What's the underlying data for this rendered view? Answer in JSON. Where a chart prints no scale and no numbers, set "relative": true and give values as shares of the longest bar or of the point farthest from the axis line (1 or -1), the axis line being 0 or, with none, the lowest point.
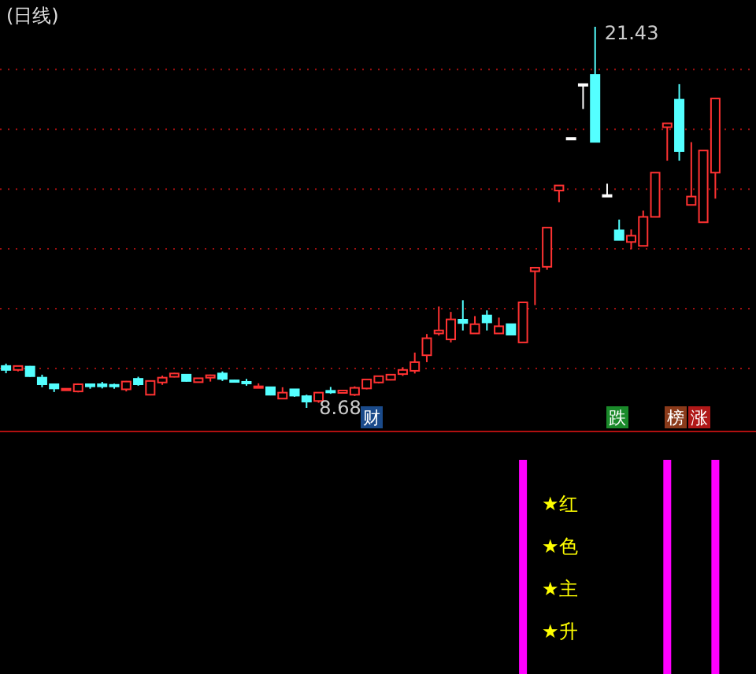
{
  "chart_data": [
    {
      "type": "candlestick",
      "title": "(日线)",
      "categories": [
        null,
        null,
        null,
        null,
        null,
        null,
        null,
        null,
        null,
        null,
        null,
        null,
        null,
        null,
        null,
        null,
        null,
        null,
        null,
        null,
        null,
        null,
        null,
        null,
        null,
        null,
        null,
        null,
        null,
        null,
        null,
        null,
        null,
        null,
        null,
        null,
        null,
        null,
        null,
        null,
        null,
        null,
        null,
        null,
        null,
        null,
        null,
        null,
        null,
        null,
        null,
        null,
        null,
        null,
        null,
        null,
        null,
        null,
        null,
        null
      ],
      "ohlc": [
        [
          10.08,
          10.16,
          9.84,
          9.95
        ],
        [
          9.95,
          10.1,
          9.9,
          10.08
        ],
        [
          10.06,
          10.08,
          9.72,
          9.74
        ],
        [
          9.69,
          9.79,
          9.37,
          9.47
        ],
        [
          9.47,
          9.49,
          9.21,
          9.33
        ],
        [
          9.3,
          9.33,
          9.29,
          9.32
        ],
        [
          9.23,
          9.5,
          9.2,
          9.47
        ],
        [
          9.47,
          9.48,
          9.32,
          9.4
        ],
        [
          9.47,
          9.55,
          9.33,
          9.4
        ],
        [
          9.45,
          9.49,
          9.32,
          9.42
        ],
        [
          9.3,
          9.58,
          9.23,
          9.56
        ],
        [
          9.65,
          9.72,
          9.42,
          9.47
        ],
        [
          9.12,
          9.6,
          9.1,
          9.58
        ],
        [
          9.53,
          9.76,
          9.45,
          9.69
        ],
        [
          9.72,
          9.85,
          9.7,
          9.83
        ],
        [
          9.79,
          9.8,
          9.56,
          9.58
        ],
        [
          9.54,
          9.68,
          9.53,
          9.67
        ],
        [
          9.69,
          9.79,
          9.56,
          9.77
        ],
        [
          9.83,
          9.9,
          9.58,
          9.65
        ],
        [
          9.6,
          9.62,
          9.55,
          9.58
        ],
        [
          9.55,
          9.65,
          9.42,
          9.52
        ],
        [
          9.36,
          9.5,
          9.35,
          9.4
        ],
        [
          9.37,
          9.38,
          9.1,
          9.12
        ],
        [
          8.99,
          9.37,
          8.98,
          9.19
        ],
        [
          9.3,
          9.31,
          9.05,
          9.09
        ],
        [
          9.07,
          9.12,
          8.68,
          8.89
        ],
        [
          8.91,
          9.2,
          8.85,
          9.19
        ],
        [
          9.25,
          9.38,
          9.15,
          9.22
        ],
        [
          9.18,
          9.26,
          9.17,
          9.26
        ],
        [
          9.12,
          9.4,
          9.08,
          9.35
        ],
        [
          9.33,
          9.65,
          9.3,
          9.63
        ],
        [
          9.53,
          9.76,
          9.5,
          9.74
        ],
        [
          9.62,
          9.8,
          9.6,
          9.79
        ],
        [
          9.81,
          10.04,
          9.75,
          9.95
        ],
        [
          9.92,
          10.53,
          9.83,
          10.21
        ],
        [
          10.44,
          11.15,
          10.21,
          11.01
        ],
        [
          11.17,
          12.07,
          11.1,
          11.27
        ],
        [
          10.97,
          11.89,
          10.87,
          11.64
        ],
        [
          11.63,
          12.28,
          11.27,
          11.52
        ],
        [
          11.17,
          11.75,
          11.17,
          11.48
        ],
        [
          11.77,
          11.94,
          11.27,
          11.54
        ],
        [
          11.17,
          11.7,
          11.17,
          11.41
        ],
        [
          11.48,
          11.48,
          11.13,
          11.13
        ],
        [
          10.87,
          12.21,
          10.87,
          12.21
        ],
        [
          13.25,
          13.37,
          12.12,
          13.37
        ],
        [
          13.4,
          14.71,
          13.3,
          14.71
        ],
        [
          15.95,
          16.12,
          15.56,
          16.12
        ],
        [
          17.71,
          17.71,
          17.71,
          17.71
        ],
        [
          19.51,
          19.51,
          18.68,
          19.51
        ],
        [
          19.82,
          21.43,
          17.58,
          17.58
        ],
        [
          15.8,
          16.18,
          15.8,
          15.8
        ],
        [
          14.62,
          14.98,
          14.3,
          14.3
        ],
        [
          14.23,
          14.65,
          13.99,
          14.44
        ],
        [
          14.1,
          15.28,
          14.1,
          15.07
        ],
        [
          15.07,
          16.55,
          15.07,
          16.55
        ],
        [
          18.07,
          18.2,
          16.95,
          18.2
        ],
        [
          18.99,
          19.51,
          16.95,
          17.27
        ],
        [
          15.47,
          17.57,
          15.47,
          15.75
        ],
        [
          14.89,
          17.29,
          14.89,
          17.29
        ],
        [
          16.55,
          19.03,
          15.68,
          19.03
        ]
      ],
      "colors": [
        "#54ffff",
        "#ff3232",
        "#54ffff",
        "#54ffff",
        "#54ffff",
        "#ff3232",
        "#ff3232",
        "#54ffff",
        "#54ffff",
        "#54ffff",
        "#ff3232",
        "#54ffff",
        "#ff3232",
        "#ff3232",
        "#ff3232",
        "#54ffff",
        "#ff3232",
        "#ff3232",
        "#54ffff",
        "#54ffff",
        "#54ffff",
        "#ff3232",
        "#54ffff",
        "#ff3232",
        "#54ffff",
        "#54ffff",
        "#ff3232",
        "#54ffff",
        "#ff3232",
        "#ff3232",
        "#ff3232",
        "#ff3232",
        "#ff3232",
        "#ff3232",
        "#ff3232",
        "#ff3232",
        "#ff3232",
        "#ff3232",
        "#54ffff",
        "#ff3232",
        "#54ffff",
        "#ff3232",
        "#54ffff",
        "#ff3232",
        "#ff3232",
        "#ff3232",
        "#ff3232",
        "#ffffff",
        "#ffffff",
        "#54ffff",
        "#ffffff",
        "#54ffff",
        "#ff3232",
        "#ff3232",
        "#ff3232",
        "#ff3232",
        "#54ffff",
        "#ff3232",
        "#ff3232",
        "#ff3232"
      ],
      "yticks": [
        {
          "value": 10,
          "label": null
        },
        {
          "value": 12,
          "label": null
        },
        {
          "value": 14,
          "label": null
        },
        {
          "value": 16,
          "label": null
        },
        {
          "value": 18,
          "label": null
        },
        {
          "value": 20,
          "label": null
        }
      ],
      "grid": "y",
      "annotations": [
        "21.43",
        "8.68",
        "财",
        "跌",
        "榜",
        "涨"
      ]
    },
    {
      "type": "bar",
      "relative": true,
      "categories": [
        null,
        null,
        null,
        null,
        null,
        null,
        null,
        null,
        null,
        null,
        null,
        null,
        null,
        null,
        null,
        null,
        null,
        null,
        null,
        null,
        null,
        null,
        null,
        null,
        null,
        null,
        null,
        null,
        null,
        null,
        null,
        null,
        null,
        null,
        null,
        null,
        null,
        null,
        null,
        null,
        null,
        null,
        null,
        null,
        null,
        null,
        null,
        null,
        null,
        null,
        null,
        null,
        null,
        null,
        null,
        null,
        null,
        null,
        null,
        null
      ],
      "values": [
        null,
        null,
        null,
        null,
        null,
        null,
        null,
        null,
        null,
        null,
        null,
        null,
        null,
        null,
        null,
        null,
        null,
        null,
        null,
        null,
        null,
        null,
        null,
        null,
        null,
        null,
        null,
        null,
        null,
        null,
        null,
        null,
        null,
        null,
        null,
        null,
        null,
        null,
        null,
        null,
        null,
        null,
        null,
        1,
        null,
        null,
        null,
        null,
        null,
        null,
        null,
        null,
        null,
        null,
        null,
        1,
        null,
        null,
        null,
        1
      ],
      "color": "#ff00ff",
      "annotations": [
        "★红",
        "★色",
        "★主",
        "★升"
      ]
    }
  ]
}
